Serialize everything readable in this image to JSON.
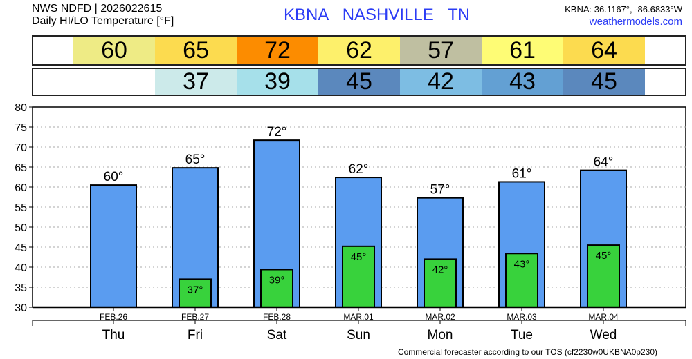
{
  "header": {
    "line1": "NWS NDFD | 2026022615",
    "line2": "Daily HI/LO Temperature [°F]",
    "station": "KBNA  NASHVILLE     TN",
    "coords": "KBNA: 36.1167°, -86.6833°W",
    "site": "weathermodels.com"
  },
  "hi_row": [
    {
      "value": "60",
      "color": "#eeeb85"
    },
    {
      "value": "65",
      "color": "#fcdb4f"
    },
    {
      "value": "72",
      "color": "#fc8c00"
    },
    {
      "value": "62",
      "color": "#fdf06b"
    },
    {
      "value": "57",
      "color": "#bfbfa1"
    },
    {
      "value": "61",
      "color": "#fefc75"
    },
    {
      "value": "64",
      "color": "#fcdb4f"
    }
  ],
  "lo_row": [
    {
      "value": "",
      "color": "#ffffff"
    },
    {
      "value": "37",
      "color": "#cceaea"
    },
    {
      "value": "39",
      "color": "#a6e0ea"
    },
    {
      "value": "45",
      "color": "#5b88bd"
    },
    {
      "value": "42",
      "color": "#7dbde3"
    },
    {
      "value": "43",
      "color": "#63a0d3"
    },
    {
      "value": "45",
      "color": "#5b88bd"
    }
  ],
  "footer": "Commercial forecaster according to our TOS (cf2230w0UKBNA0p230)",
  "chart_data": {
    "type": "bar",
    "dates": [
      "FEB.26",
      "FEB.27",
      "FEB.28",
      "MAR.01",
      "MAR.02",
      "MAR.03",
      "MAR.04"
    ],
    "categories": [
      "Thu",
      "Fri",
      "Sat",
      "Sun",
      "Mon",
      "Tue",
      "Wed"
    ],
    "series": [
      {
        "name": "High",
        "values": [
          60.5,
          64.8,
          71.7,
          62.4,
          57.3,
          61.3,
          64.2
        ],
        "labels": [
          "60°",
          "65°",
          "72°",
          "62°",
          "57°",
          "61°",
          "64°"
        ],
        "color": "#5a9cf0"
      },
      {
        "name": "Low",
        "values": [
          null,
          37,
          39.4,
          45.2,
          42,
          43.4,
          45.5
        ],
        "labels": [
          "",
          "37°",
          "39°",
          "45°",
          "42°",
          "43°",
          "45°"
        ],
        "color": "#38d23c"
      }
    ],
    "ylim": [
      30,
      80
    ],
    "yticks": [
      "30",
      "35",
      "40",
      "45",
      "50",
      "55",
      "60",
      "65",
      "70",
      "75",
      "80"
    ],
    "grid": true
  }
}
